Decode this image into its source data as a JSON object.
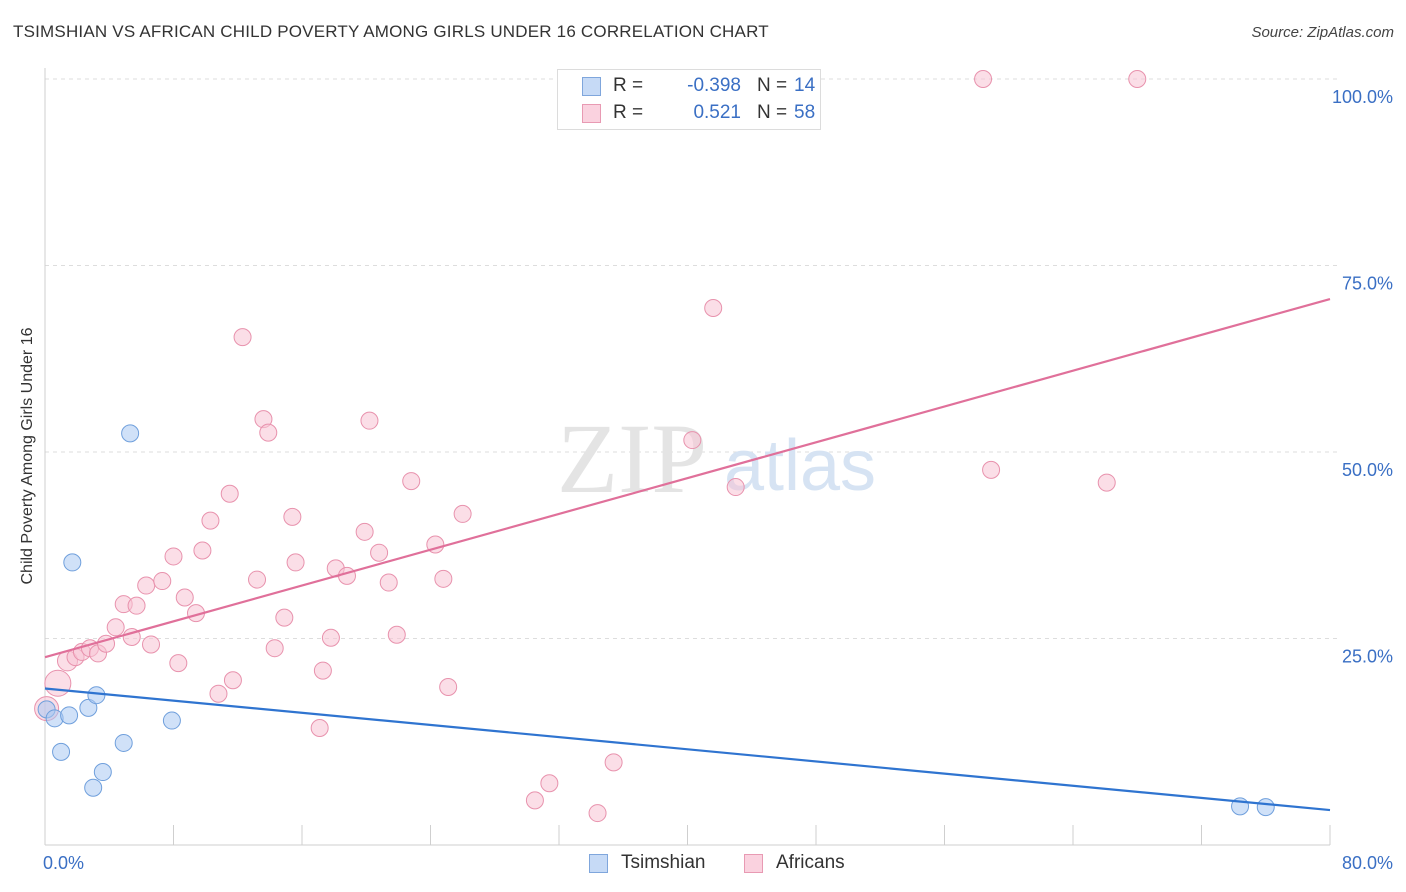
{
  "title": "TSIMSHIAN VS AFRICAN CHILD POVERTY AMONG GIRLS UNDER 16 CORRELATION CHART",
  "source": "Source: ZipAtlas.com",
  "watermark": {
    "zip": "ZIP",
    "atlas": "atlas"
  },
  "colors": {
    "tsimshian_fill": "#a9c8f2",
    "tsimshian_stroke": "#6f9fdc",
    "tsimshian_line": "#2f74d0",
    "africans_fill": "#f7c3d3",
    "africans_stroke": "#e892ad",
    "africans_line": "#e0709a",
    "tick_label": "#3a6fc4",
    "grid": "#dddddd"
  },
  "legend": {
    "rows": [
      {
        "r_label": "R =",
        "r_value": "-0.398",
        "n_label": "N =",
        "n_value": "14"
      },
      {
        "r_label": "R =",
        "r_value": "0.521",
        "n_label": "N =",
        "n_value": "58"
      }
    ],
    "bottom": [
      "Tsimshian",
      "Africans"
    ]
  },
  "chart_data": {
    "type": "scatter",
    "title": "TSIMSHIAN VS AFRICAN CHILD POVERTY AMONG GIRLS UNDER 16 CORRELATION CHART",
    "xlabel": "",
    "ylabel": "Child Poverty Among Girls Under 16",
    "xlim": [
      0,
      80
    ],
    "ylim": [
      0,
      100
    ],
    "x_tick_labels": [
      "0.0%",
      "80.0%"
    ],
    "y_ticks": [
      25,
      50,
      75,
      100
    ],
    "y_tick_labels": [
      "25.0%",
      "50.0%",
      "75.0%",
      "100.0%"
    ],
    "grid": true,
    "legend_position": "top-center",
    "series": [
      {
        "name": "Tsimshian",
        "points": [
          [
            0.1,
            15.5
          ],
          [
            0.6,
            14.3
          ],
          [
            1.0,
            9.8
          ],
          [
            1.5,
            14.7
          ],
          [
            1.7,
            35.2
          ],
          [
            2.7,
            15.7
          ],
          [
            3.0,
            5.0
          ],
          [
            3.2,
            17.4
          ],
          [
            3.6,
            7.1
          ],
          [
            4.9,
            11.0
          ],
          [
            5.3,
            52.5
          ],
          [
            7.9,
            14.0
          ],
          [
            74.4,
            2.5
          ],
          [
            76.0,
            2.4
          ]
        ],
        "trend": {
          "x": [
            0,
            80
          ],
          "y": [
            18.3,
            2.0
          ]
        }
      },
      {
        "name": "Africans",
        "points": [
          [
            0.1,
            15.6
          ],
          [
            0.8,
            19.0
          ],
          [
            1.4,
            22.0
          ],
          [
            1.9,
            22.5
          ],
          [
            2.3,
            23.2
          ],
          [
            2.8,
            23.7
          ],
          [
            3.3,
            23.0
          ],
          [
            3.8,
            24.3
          ],
          [
            4.4,
            26.5
          ],
          [
            4.9,
            29.6
          ],
          [
            5.4,
            25.2
          ],
          [
            5.7,
            29.4
          ],
          [
            6.3,
            32.1
          ],
          [
            6.6,
            24.2
          ],
          [
            7.3,
            32.7
          ],
          [
            8.0,
            36.0
          ],
          [
            8.3,
            21.7
          ],
          [
            8.7,
            30.5
          ],
          [
            9.4,
            28.4
          ],
          [
            9.8,
            36.8
          ],
          [
            10.3,
            40.8
          ],
          [
            10.8,
            17.6
          ],
          [
            11.5,
            44.4
          ],
          [
            11.7,
            19.4
          ],
          [
            12.3,
            65.4
          ],
          [
            13.2,
            32.9
          ],
          [
            13.6,
            54.4
          ],
          [
            13.9,
            52.6
          ],
          [
            14.3,
            23.7
          ],
          [
            14.9,
            27.8
          ],
          [
            15.4,
            41.3
          ],
          [
            15.6,
            35.2
          ],
          [
            17.1,
            13.0
          ],
          [
            17.3,
            20.7
          ],
          [
            17.8,
            25.1
          ],
          [
            18.1,
            34.4
          ],
          [
            18.8,
            33.4
          ],
          [
            19.9,
            39.3
          ],
          [
            20.2,
            54.2
          ],
          [
            20.8,
            36.5
          ],
          [
            21.4,
            32.5
          ],
          [
            21.9,
            25.5
          ],
          [
            22.8,
            46.1
          ],
          [
            24.3,
            37.6
          ],
          [
            24.8,
            33.0
          ],
          [
            25.1,
            18.5
          ],
          [
            26.0,
            41.7
          ],
          [
            30.5,
            3.3
          ],
          [
            31.4,
            5.6
          ],
          [
            34.4,
            1.6
          ],
          [
            35.4,
            8.4
          ],
          [
            40.3,
            51.6
          ],
          [
            41.6,
            69.3
          ],
          [
            43.0,
            45.3
          ],
          [
            58.4,
            100.0
          ],
          [
            58.9,
            47.6
          ],
          [
            66.1,
            45.9
          ],
          [
            68.0,
            100.0
          ]
        ],
        "trend": {
          "x": [
            0,
            80
          ],
          "y": [
            22.5,
            70.5
          ]
        }
      }
    ]
  }
}
